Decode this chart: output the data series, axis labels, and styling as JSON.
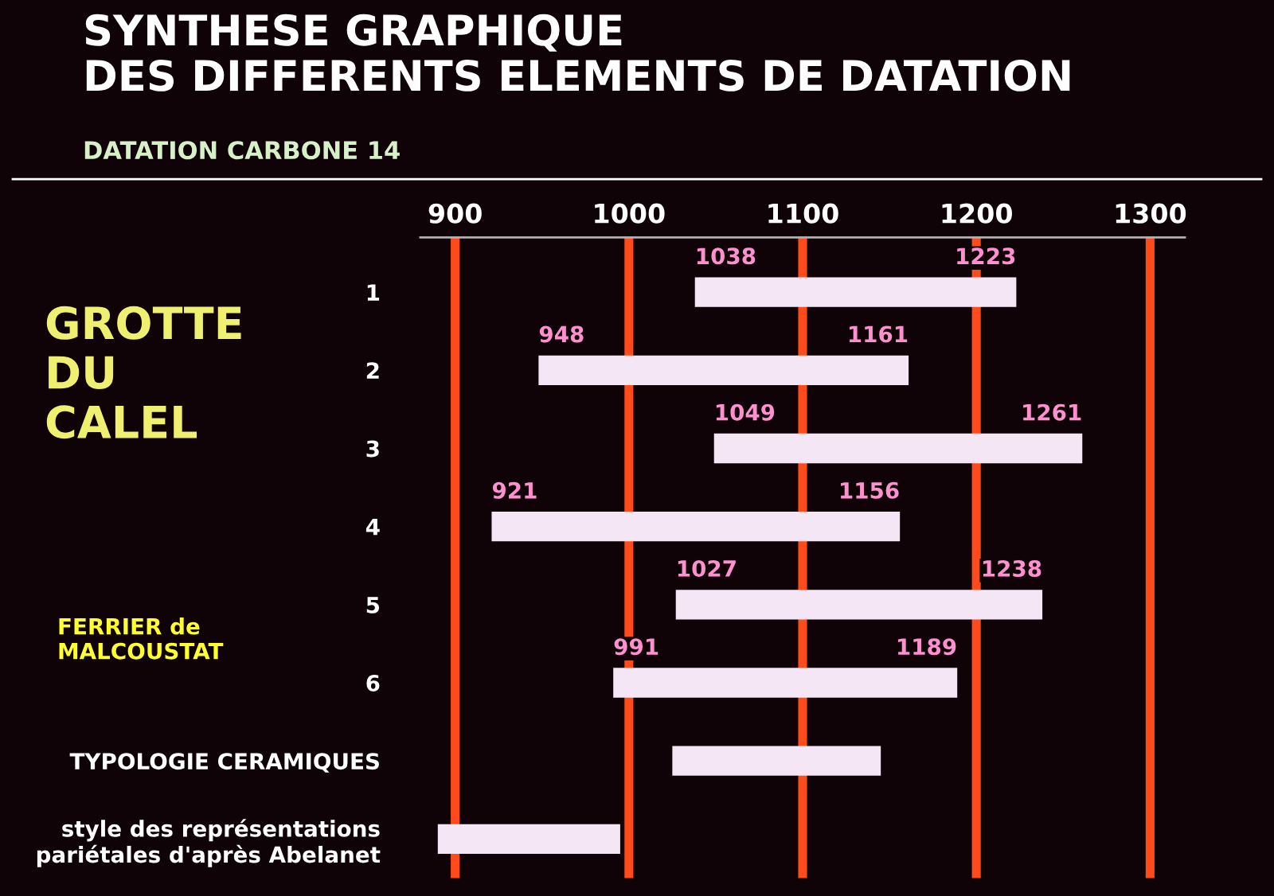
{
  "chart_data": {
    "type": "bar",
    "orientation": "horizontal",
    "title": "SYNTHESE GRAPHIQUE\nDES DIFFERENTS ELEMENTS DE DATATION",
    "subtitle": "DATATION CARBONE 14",
    "categories": [
      "1",
      "2",
      "3",
      "4",
      "5",
      "6",
      "TYPOLOGIE CERAMIQUES",
      "style des représentations\npariétales d'après Abelanet"
    ],
    "base": [
      1038,
      948,
      1049,
      921,
      1027,
      991,
      1025,
      890
    ],
    "values": [
      185,
      213,
      212,
      235,
      211,
      198,
      120,
      105
    ],
    "color": "#f5e6f5",
    "xlim": [
      880,
      1320
    ],
    "xticks": [
      900,
      1000,
      1100,
      1200,
      1300
    ],
    "grid": "x",
    "annotations": [
      "GROTTE\nDU\nCALEL",
      "FERRIER de\nMALCOUSTAT",
      {
        "text": "1038",
        "x": 1038,
        "y": "1"
      },
      {
        "text": "1223",
        "x": 1223,
        "y": "1"
      },
      {
        "text": "948",
        "x": 948,
        "y": "2"
      },
      {
        "text": "1161",
        "x": 1161,
        "y": "2"
      },
      {
        "text": "1049",
        "x": 1049,
        "y": "3"
      },
      {
        "text": "1261",
        "x": 1261,
        "y": "3"
      },
      {
        "text": "921",
        "x": 921,
        "y": "4"
      },
      {
        "text": "1156",
        "x": 1156,
        "y": "4"
      },
      {
        "text": "1027",
        "x": 1027,
        "y": "5"
      },
      {
        "text": "1238",
        "x": 1238,
        "y": "5"
      },
      {
        "text": "991",
        "x": 991,
        "y": "6"
      },
      {
        "text": "1189",
        "x": 1189,
        "y": "6"
      }
    ]
  }
}
